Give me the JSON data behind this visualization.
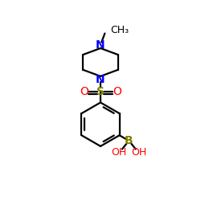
{
  "bg_color": "#ffffff",
  "atom_colors": {
    "N": "#0000ff",
    "O": "#ff0000",
    "S": "#808000",
    "B": "#808000",
    "C": "#000000",
    "H": "#000000"
  },
  "bond_color": "#000000",
  "bond_width": 1.6,
  "figsize": [
    2.5,
    2.5
  ],
  "dpi": 100,
  "xlim": [
    0,
    10
  ],
  "ylim": [
    0,
    10
  ]
}
